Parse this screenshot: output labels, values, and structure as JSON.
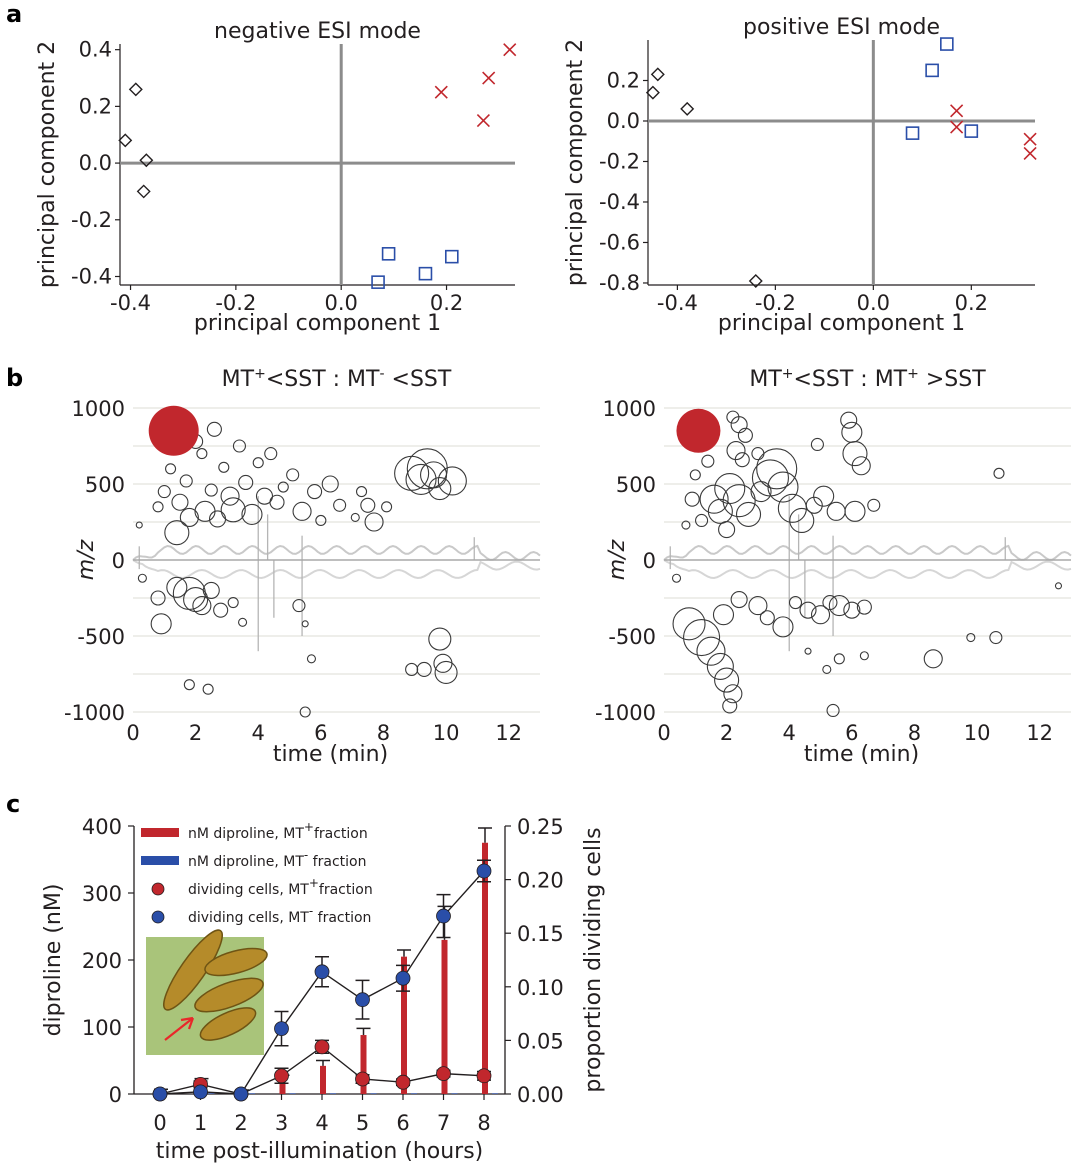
{
  "panel_labels": {
    "a": "a",
    "b": "b",
    "c": "c"
  },
  "chart_data": [
    {
      "id": "a1",
      "type": "scatter",
      "title": "negative ESI mode",
      "xlabel": "principal component 1",
      "ylabel": "principal component 2",
      "xlim": [
        -0.42,
        0.33
      ],
      "ylim": [
        -0.43,
        0.42
      ],
      "xticks": [
        -0.4,
        -0.2,
        0.0,
        0.2
      ],
      "xtick_labels": [
        "-0.4",
        "-0.2",
        "0.0",
        "0.2"
      ],
      "yticks": [
        -0.4,
        -0.2,
        0.0,
        0.2,
        0.4
      ],
      "ytick_labels": [
        "-0.4",
        "-0.2",
        "0.0",
        "0.2",
        "0.4"
      ],
      "series": [
        {
          "marker": "diamond",
          "color": "#231f20",
          "points": [
            [
              -0.39,
              0.26
            ],
            [
              -0.41,
              0.08
            ],
            [
              -0.37,
              0.01
            ],
            [
              -0.375,
              -0.1
            ]
          ]
        },
        {
          "marker": "x",
          "color": "#c1272d",
          "points": [
            [
              0.19,
              0.25
            ],
            [
              0.27,
              0.15
            ],
            [
              0.28,
              0.3
            ],
            [
              0.32,
              0.4
            ]
          ]
        },
        {
          "marker": "square",
          "color": "#2a4ea8",
          "points": [
            [
              0.07,
              -0.42
            ],
            [
              0.09,
              -0.32
            ],
            [
              0.16,
              -0.39
            ],
            [
              0.21,
              -0.33
            ]
          ]
        }
      ]
    },
    {
      "id": "a2",
      "type": "scatter",
      "title": "positive ESI mode",
      "xlabel": "principal component 1",
      "ylabel": "principal component 2",
      "xlim": [
        -0.46,
        0.33
      ],
      "ylim": [
        -0.81,
        0.4
      ],
      "xticks": [
        -0.4,
        -0.2,
        0.0,
        0.2
      ],
      "xtick_labels": [
        "-0.4",
        "-0.2",
        "0.0",
        "0.2"
      ],
      "yticks": [
        -0.8,
        -0.6,
        -0.4,
        -0.2,
        0.0,
        0.2
      ],
      "ytick_labels": [
        "-0.8",
        "-0.6",
        "-0.4",
        "-0.2",
        "0.0",
        "0.2"
      ],
      "series": [
        {
          "marker": "diamond",
          "color": "#231f20",
          "points": [
            [
              -0.44,
              0.23
            ],
            [
              -0.45,
              0.14
            ],
            [
              -0.38,
              0.06
            ],
            [
              -0.24,
              -0.79
            ]
          ]
        },
        {
          "marker": "square",
          "color": "#2a4ea8",
          "points": [
            [
              0.15,
              0.38
            ],
            [
              0.12,
              0.25
            ],
            [
              0.08,
              -0.06
            ],
            [
              0.2,
              -0.05
            ]
          ]
        },
        {
          "marker": "x",
          "color": "#c1272d",
          "points": [
            [
              0.17,
              0.05
            ],
            [
              0.17,
              -0.03
            ],
            [
              0.32,
              -0.09
            ],
            [
              0.32,
              -0.16
            ]
          ]
        }
      ]
    },
    {
      "id": "b1",
      "type": "scatter",
      "title": {
        "prefix": "MT",
        "sup1": "+",
        "mid": "<SST : MT",
        "sup2": "-",
        "suffix": " <SST"
      },
      "xlabel": "time (min)",
      "ylabel": "m/z",
      "xlim": [
        0,
        13
      ],
      "ylim": [
        -1000,
        1000
      ],
      "xticks": [
        0,
        2,
        4,
        6,
        8,
        10,
        12
      ],
      "xtick_labels": [
        "0",
        "2",
        "4",
        "6",
        "8",
        "10",
        "12"
      ],
      "yticks": [
        1000,
        500,
        0,
        -500,
        -1000
      ],
      "ytick_labels": [
        "1000",
        "500",
        "0",
        "-500",
        "-1000"
      ],
      "legend_dot": {
        "x": 1.3,
        "y": 850,
        "color": "#c1272d"
      },
      "bubbles_upper": [
        [
          0.2,
          230,
          3
        ],
        [
          0.8,
          350,
          5
        ],
        [
          1.0,
          450,
          6
        ],
        [
          1.2,
          600,
          5
        ],
        [
          1.5,
          380,
          8
        ],
        [
          1.7,
          520,
          6
        ],
        [
          1.8,
          280,
          9
        ],
        [
          2.0,
          780,
          7
        ],
        [
          2.2,
          700,
          5
        ],
        [
          2.3,
          320,
          10
        ],
        [
          2.5,
          460,
          6
        ],
        [
          2.7,
          270,
          8
        ],
        [
          2.9,
          610,
          5
        ],
        [
          3.1,
          420,
          9
        ],
        [
          3.2,
          330,
          12
        ],
        [
          3.4,
          750,
          6
        ],
        [
          3.6,
          510,
          7
        ],
        [
          3.8,
          300,
          10
        ],
        [
          4.0,
          640,
          5
        ],
        [
          4.2,
          420,
          8
        ],
        [
          4.4,
          700,
          6
        ],
        [
          4.6,
          380,
          7
        ],
        [
          4.8,
          480,
          5
        ],
        [
          5.1,
          560,
          6
        ],
        [
          5.4,
          320,
          9
        ],
        [
          5.8,
          450,
          7
        ],
        [
          6.0,
          260,
          5
        ],
        [
          6.3,
          500,
          8
        ],
        [
          6.6,
          360,
          6
        ],
        [
          7.1,
          280,
          4
        ],
        [
          7.3,
          450,
          5
        ],
        [
          7.5,
          360,
          7
        ],
        [
          7.7,
          250,
          9
        ],
        [
          8.1,
          350,
          5
        ],
        [
          8.9,
          570,
          17
        ],
        [
          9.2,
          530,
          15
        ],
        [
          9.4,
          600,
          20
        ],
        [
          9.6,
          560,
          13
        ],
        [
          9.8,
          470,
          11
        ],
        [
          10.2,
          520,
          14
        ],
        [
          1.1,
          780,
          4
        ],
        [
          2.6,
          860,
          7
        ],
        [
          1.4,
          180,
          12
        ]
      ],
      "bubbles_lower": [
        [
          0.3,
          -120,
          4
        ],
        [
          0.8,
          -250,
          7
        ],
        [
          1.4,
          -180,
          10
        ],
        [
          1.8,
          -220,
          16
        ],
        [
          2.0,
          -260,
          12
        ],
        [
          2.2,
          -300,
          9
        ],
        [
          2.5,
          -200,
          8
        ],
        [
          2.8,
          -330,
          7
        ],
        [
          3.2,
          -280,
          5
        ],
        [
          3.5,
          -410,
          4
        ],
        [
          0.9,
          -420,
          10
        ],
        [
          1.8,
          -820,
          5
        ],
        [
          2.4,
          -850,
          5
        ],
        [
          5.3,
          -300,
          6
        ],
        [
          5.5,
          -420,
          3
        ],
        [
          5.7,
          -650,
          4
        ],
        [
          5.5,
          -1000,
          5
        ],
        [
          9.3,
          -720,
          7
        ],
        [
          9.8,
          -520,
          11
        ],
        [
          9.9,
          -680,
          9
        ],
        [
          10.0,
          -740,
          11
        ],
        [
          8.9,
          -720,
          6
        ]
      ]
    },
    {
      "id": "b2",
      "type": "scatter",
      "title": {
        "prefix": "MT",
        "sup1": "+",
        "mid": "<SST : MT",
        "sup2": "+",
        "suffix": " >SST"
      },
      "xlabel": "time (min)",
      "ylabel": "m/z",
      "xlim": [
        0,
        13
      ],
      "ylim": [
        -1000,
        1000
      ],
      "xticks": [
        0,
        2,
        4,
        6,
        8,
        10,
        12
      ],
      "xtick_labels": [
        "0",
        "2",
        "4",
        "6",
        "8",
        "10",
        "12"
      ],
      "yticks": [
        1000,
        500,
        0,
        -500,
        -1000
      ],
      "ytick_labels": [
        "1000",
        "500",
        "0",
        "-500",
        "-1000"
      ],
      "legend_dot": {
        "x": 1.1,
        "y": 850,
        "color": "#c1272d"
      },
      "bubbles_upper": [
        [
          2.2,
          940,
          6
        ],
        [
          2.4,
          890,
          8
        ],
        [
          2.6,
          820,
          7
        ],
        [
          2.3,
          720,
          9
        ],
        [
          2.5,
          660,
          7
        ],
        [
          1.6,
          400,
          14
        ],
        [
          1.8,
          320,
          12
        ],
        [
          2.1,
          470,
          15
        ],
        [
          2.4,
          390,
          16
        ],
        [
          2.7,
          300,
          12
        ],
        [
          3.1,
          450,
          10
        ],
        [
          3.4,
          540,
          18
        ],
        [
          3.6,
          600,
          20
        ],
        [
          3.8,
          480,
          15
        ],
        [
          4.1,
          340,
          14
        ],
        [
          4.4,
          260,
          12
        ],
        [
          4.8,
          360,
          8
        ],
        [
          5.1,
          420,
          10
        ],
        [
          5.5,
          320,
          9
        ],
        [
          5.9,
          920,
          8
        ],
        [
          6.0,
          840,
          10
        ],
        [
          6.1,
          700,
          12
        ],
        [
          6.3,
          620,
          9
        ],
        [
          6.1,
          320,
          10
        ],
        [
          6.7,
          360,
          6
        ],
        [
          0.9,
          400,
          7
        ],
        [
          1.2,
          260,
          6
        ],
        [
          0.7,
          230,
          4
        ],
        [
          1.0,
          560,
          5
        ],
        [
          3.0,
          700,
          6
        ],
        [
          4.9,
          760,
          6
        ],
        [
          10.7,
          570,
          5
        ],
        [
          1.4,
          650,
          6
        ],
        [
          2.0,
          200,
          8
        ]
      ],
      "bubbles_lower": [
        [
          0.4,
          -120,
          4
        ],
        [
          0.8,
          -420,
          16
        ],
        [
          1.2,
          -510,
          18
        ],
        [
          1.5,
          -600,
          14
        ],
        [
          1.8,
          -700,
          13
        ],
        [
          2.0,
          -790,
          12
        ],
        [
          2.2,
          -880,
          9
        ],
        [
          1.9,
          -360,
          10
        ],
        [
          2.4,
          -260,
          8
        ],
        [
          3.0,
          -300,
          9
        ],
        [
          3.3,
          -380,
          7
        ],
        [
          3.8,
          -440,
          10
        ],
        [
          4.2,
          -280,
          6
        ],
        [
          4.6,
          -330,
          8
        ],
        [
          5.0,
          -360,
          9
        ],
        [
          5.3,
          -280,
          7
        ],
        [
          5.6,
          -300,
          10
        ],
        [
          6.0,
          -330,
          8
        ],
        [
          6.4,
          -310,
          7
        ],
        [
          5.6,
          -650,
          5
        ],
        [
          5.2,
          -720,
          4
        ],
        [
          6.4,
          -630,
          4
        ],
        [
          4.6,
          -600,
          3
        ],
        [
          5.4,
          -990,
          6
        ],
        [
          8.6,
          -650,
          9
        ],
        [
          9.8,
          -510,
          4
        ],
        [
          10.6,
          -510,
          6
        ],
        [
          2.1,
          -960,
          7
        ],
        [
          12.6,
          -170,
          3
        ]
      ]
    },
    {
      "id": "c",
      "type": "bar",
      "xlabel": "time post-illumination (hours)",
      "ylabel": "diproline (nM)",
      "ylabel_right": "proportion dividing cells",
      "categories": [
        "0",
        "1",
        "2",
        "3",
        "4",
        "5",
        "6",
        "7",
        "8"
      ],
      "ylim": [
        0,
        400
      ],
      "ylim_right": [
        0,
        0.25
      ],
      "yticks": [
        0,
        100,
        200,
        300,
        400
      ],
      "ytick_labels": [
        "0",
        "100",
        "200",
        "300",
        "400"
      ],
      "yticks_right": [
        0.0,
        0.05,
        0.1,
        0.15,
        0.2,
        0.25
      ],
      "ytick_labels_right": [
        "0.00",
        "0.05",
        "0.10",
        "0.15",
        "0.20",
        "0.25"
      ],
      "bars_mt_plus": {
        "values": [
          3,
          15,
          3,
          22,
          42,
          88,
          205,
          230,
          375
        ],
        "errors": [
          4,
          8,
          3,
          6,
          8,
          10,
          10,
          50,
          22
        ],
        "color": "#c1272d"
      },
      "bars_mt_minus": {
        "values": [
          1,
          1,
          1,
          1,
          1,
          1,
          1,
          1,
          1
        ],
        "color": "#2a4ea8"
      },
      "dividing_mt_plus": {
        "values": [
          0.0,
          0.009,
          0.0,
          0.017,
          0.044,
          0.014,
          0.011,
          0.019,
          0.017
        ],
        "errors": [
          0.002,
          0.003,
          0.002,
          0.007,
          0.006,
          0.004,
          0.003,
          0.003,
          0.004
        ],
        "color": "#c1272d"
      },
      "dividing_mt_minus": {
        "values": [
          0.0,
          0.002,
          0.0,
          0.061,
          0.114,
          0.088,
          0.108,
          0.166,
          0.208
        ],
        "errors": [
          0.002,
          0.002,
          0.002,
          0.016,
          0.014,
          0.018,
          0.012,
          0.02,
          0.01
        ],
        "color": "#2a4ea8"
      },
      "legend": [
        {
          "kind": "bar",
          "color": "#c1272d",
          "text": "nM diproline, MT",
          "sup": "+",
          "text2": "fraction"
        },
        {
          "kind": "bar",
          "color": "#2a4ea8",
          "text": "nM diproline, MT",
          "sup": "-",
          "text2": " fraction"
        },
        {
          "kind": "dot",
          "color": "#c1272d",
          "text": "dividing cells, MT",
          "sup": "+",
          "text2": "fraction"
        },
        {
          "kind": "dot",
          "color": "#2a4ea8",
          "text": "dividing cells, MT",
          "sup": "-",
          "text2": " fraction"
        }
      ]
    }
  ]
}
